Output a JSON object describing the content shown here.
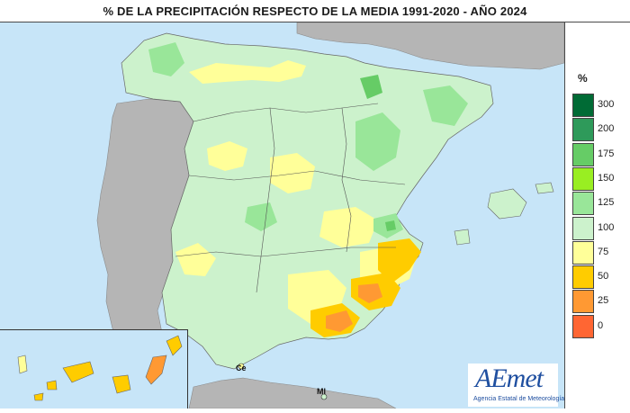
{
  "title": "% DE LA PRECIPITACIÓN RESPECTO DE LA MEDIA 1991-2020 - AÑO 2024",
  "legend": {
    "unit": "%",
    "classes": [
      {
        "label": "300",
        "color": "#006b35"
      },
      {
        "label": "200",
        "color": "#2e9a5a"
      },
      {
        "label": "175",
        "color": "#66cc66"
      },
      {
        "label": "150",
        "color": "#99ee22"
      },
      {
        "label": "125",
        "color": "#99e699"
      },
      {
        "label": "100",
        "color": "#ccf2cc"
      },
      {
        "label": "75",
        "color": "#ffff99"
      },
      {
        "label": "50",
        "color": "#ffcc00"
      },
      {
        "label": "25",
        "color": "#ff9933"
      },
      {
        "label": "0",
        "color": "#ff6633"
      }
    ]
  },
  "cities": {
    "ceuta": "Ce",
    "melilla": "Ml"
  },
  "logo": {
    "mark": "AEmet",
    "subtitle": "Agencia Estatal de Meteorología"
  }
}
